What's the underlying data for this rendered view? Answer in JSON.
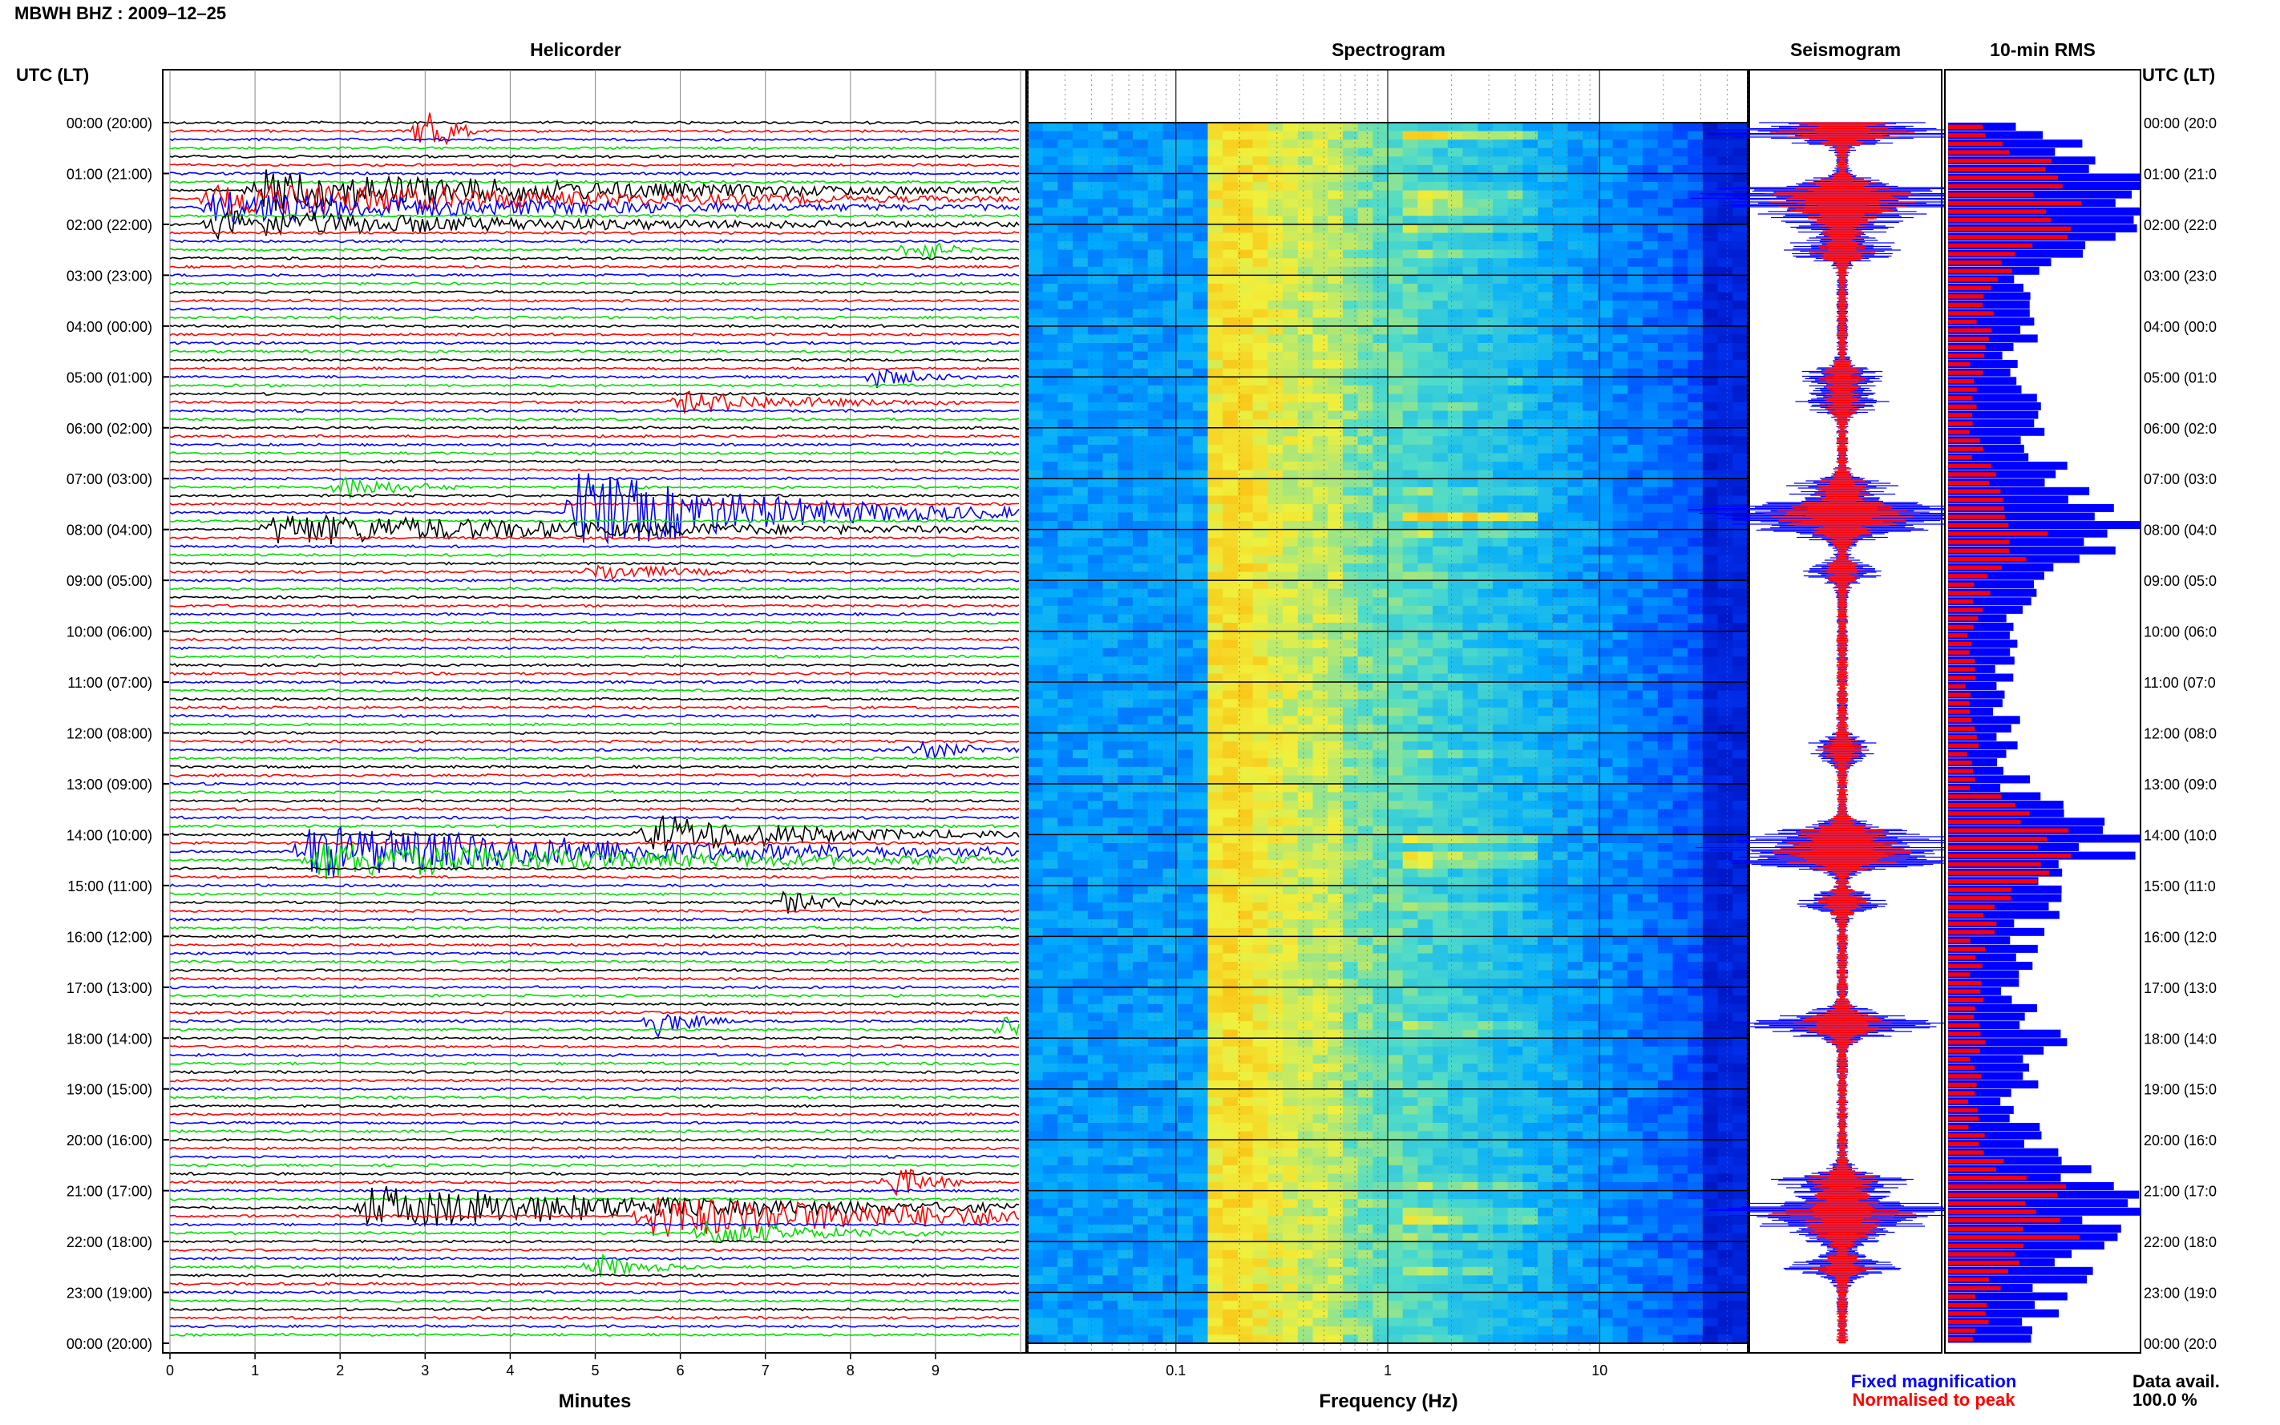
{
  "figure": {
    "title": "MBWH BHZ : 2009–12–25",
    "utc_label_left": "UTC (LT)",
    "utc_label_right": "UTC (LT)"
  },
  "panels": {
    "helicorder": "Helicorder",
    "spectrogram": "Spectrogram",
    "seismogram": "Seismogram",
    "rms": "10-min RMS"
  },
  "axes": {
    "helicorder_xlabel": "Minutes",
    "helicorder_ticks": [
      "0",
      "1",
      "2",
      "3",
      "4",
      "5",
      "6",
      "7",
      "8",
      "9"
    ],
    "spectrogram_xlabel": "Frequency (Hz)",
    "spectrogram_ticks": [
      "0.1",
      "1",
      "10"
    ],
    "time_labels": [
      "00:00 (20:00)",
      "01:00 (21:00)",
      "02:00 (22:00)",
      "03:00 (23:00)",
      "04:00 (00:00)",
      "05:00 (01:00)",
      "06:00 (02:00)",
      "07:00 (03:00)",
      "08:00 (04:00)",
      "09:00 (05:00)",
      "10:00 (06:00)",
      "11:00 (07:00)",
      "12:00 (08:00)",
      "13:00 (09:00)",
      "14:00 (10:00)",
      "15:00 (11:00)",
      "16:00 (12:00)",
      "17:00 (13:00)",
      "18:00 (14:00)",
      "19:00 (15:00)",
      "20:00 (16:00)",
      "21:00 (17:00)",
      "22:00 (18:00)",
      "23:00 (19:00)",
      "00:00 (20:00)"
    ],
    "time_labels_right": [
      "00:00 (20:0",
      "01:00 (21:0",
      "02:00 (22:0",
      "03:00 (23:0",
      "04:00 (00:0",
      "05:00 (01:0",
      "06:00 (02:0",
      "07:00 (03:0",
      "08:00 (04:0",
      "09:00 (05:0",
      "10:00 (06:0",
      "11:00 (07:0",
      "12:00 (08:0",
      "13:00 (09:0",
      "14:00 (10:0",
      "15:00 (11:0",
      "16:00 (12:0",
      "17:00 (13:0",
      "18:00 (14:0",
      "19:00 (15:0",
      "20:00 (16:0",
      "21:00 (17:0",
      "22:00 (18:0",
      "23:00 (19:0",
      "00:00 (20:0"
    ]
  },
  "legend": {
    "fixed": "Fixed magnification",
    "normalised": "Normalised to peak",
    "fixed_color": "#0000ff",
    "normalised_color": "#ff0000",
    "data_avail_label": "Data avail.",
    "data_avail_value": "100.0 %"
  },
  "colors": {
    "trace_cycle": [
      "#000000",
      "#ff0000",
      "#0000ff",
      "#00dd00"
    ],
    "rms_fixed": "#0000ff",
    "rms_norm": "#ff0000"
  },
  "chart_data": {
    "type": "helicorder",
    "station": "MBWH",
    "channel": "BHZ",
    "date": "2009-12-25",
    "rows_per_hour": 6,
    "minutes_per_row": 10,
    "spectrogram_freq_range_hz": [
      0.02,
      50
    ],
    "spectrogram_scale": "log",
    "events": [
      {
        "time": "00:10",
        "minute": 3.0,
        "amp": 2.8,
        "dur": 0.6
      },
      {
        "time": "01:20",
        "minute": 1.0,
        "amp": 1.6,
        "dur": 10
      },
      {
        "time": "01:30",
        "minute": 0.5,
        "amp": 1.4,
        "dur": 10
      },
      {
        "time": "01:40",
        "minute": 0.5,
        "amp": 1.2,
        "dur": 10
      },
      {
        "time": "02:00",
        "minute": 0.5,
        "amp": 1.0,
        "dur": 10
      },
      {
        "time": "02:30",
        "minute": 8.7,
        "amp": 1.2,
        "dur": 0.8
      },
      {
        "time": "05:00",
        "minute": 8.3,
        "amp": 0.8,
        "dur": 1.2
      },
      {
        "time": "05:30",
        "minute": 6.0,
        "amp": 0.8,
        "dur": 3.5
      },
      {
        "time": "07:10",
        "minute": 2.0,
        "amp": 1.0,
        "dur": 1.5
      },
      {
        "time": "07:40",
        "minute": 4.8,
        "amp": 3.2,
        "dur": 5.5
      },
      {
        "time": "08:00",
        "minute": 1.2,
        "amp": 1.2,
        "dur": 10
      },
      {
        "time": "08:50",
        "minute": 5.0,
        "amp": 0.7,
        "dur": 2.0
      },
      {
        "time": "12:20",
        "minute": 8.8,
        "amp": 0.8,
        "dur": 1.2
      },
      {
        "time": "14:00",
        "minute": 5.6,
        "amp": 1.6,
        "dur": 4.4
      },
      {
        "time": "14:20",
        "minute": 1.6,
        "amp": 2.0,
        "dur": 10
      },
      {
        "time": "14:30",
        "minute": 1.7,
        "amp": 1.4,
        "dur": 10
      },
      {
        "time": "15:20",
        "minute": 7.2,
        "amp": 0.8,
        "dur": 1.5
      },
      {
        "time": "17:40",
        "minute": 5.7,
        "amp": 1.2,
        "dur": 1.0
      },
      {
        "time": "17:50",
        "minute": 9.8,
        "amp": 1.0,
        "dur": 0.6
      },
      {
        "time": "20:50",
        "minute": 8.5,
        "amp": 1.4,
        "dur": 1.0
      },
      {
        "time": "21:20",
        "minute": 2.3,
        "amp": 1.6,
        "dur": 10
      },
      {
        "time": "21:30",
        "minute": 5.6,
        "amp": 1.6,
        "dur": 10
      },
      {
        "time": "21:50",
        "minute": 6.3,
        "amp": 1.0,
        "dur": 3.0
      },
      {
        "time": "22:30",
        "minute": 5.0,
        "amp": 1.0,
        "dur": 1.2
      }
    ],
    "rms_fixed_hourly": [
      0.45,
      0.95,
      0.95,
      0.45,
      0.4,
      0.35,
      0.45,
      0.55,
      0.95,
      0.45,
      0.3,
      0.3,
      0.3,
      0.35,
      0.95,
      0.55,
      0.4,
      0.35,
      0.5,
      0.35,
      0.4,
      0.85,
      0.85,
      0.5,
      0.5
    ],
    "rms_norm_hourly": [
      0.15,
      0.55,
      0.55,
      0.2,
      0.18,
      0.15,
      0.15,
      0.2,
      0.45,
      0.18,
      0.12,
      0.12,
      0.12,
      0.14,
      0.65,
      0.35,
      0.16,
      0.14,
      0.15,
      0.13,
      0.15,
      0.55,
      0.55,
      0.18,
      0.15
    ]
  }
}
